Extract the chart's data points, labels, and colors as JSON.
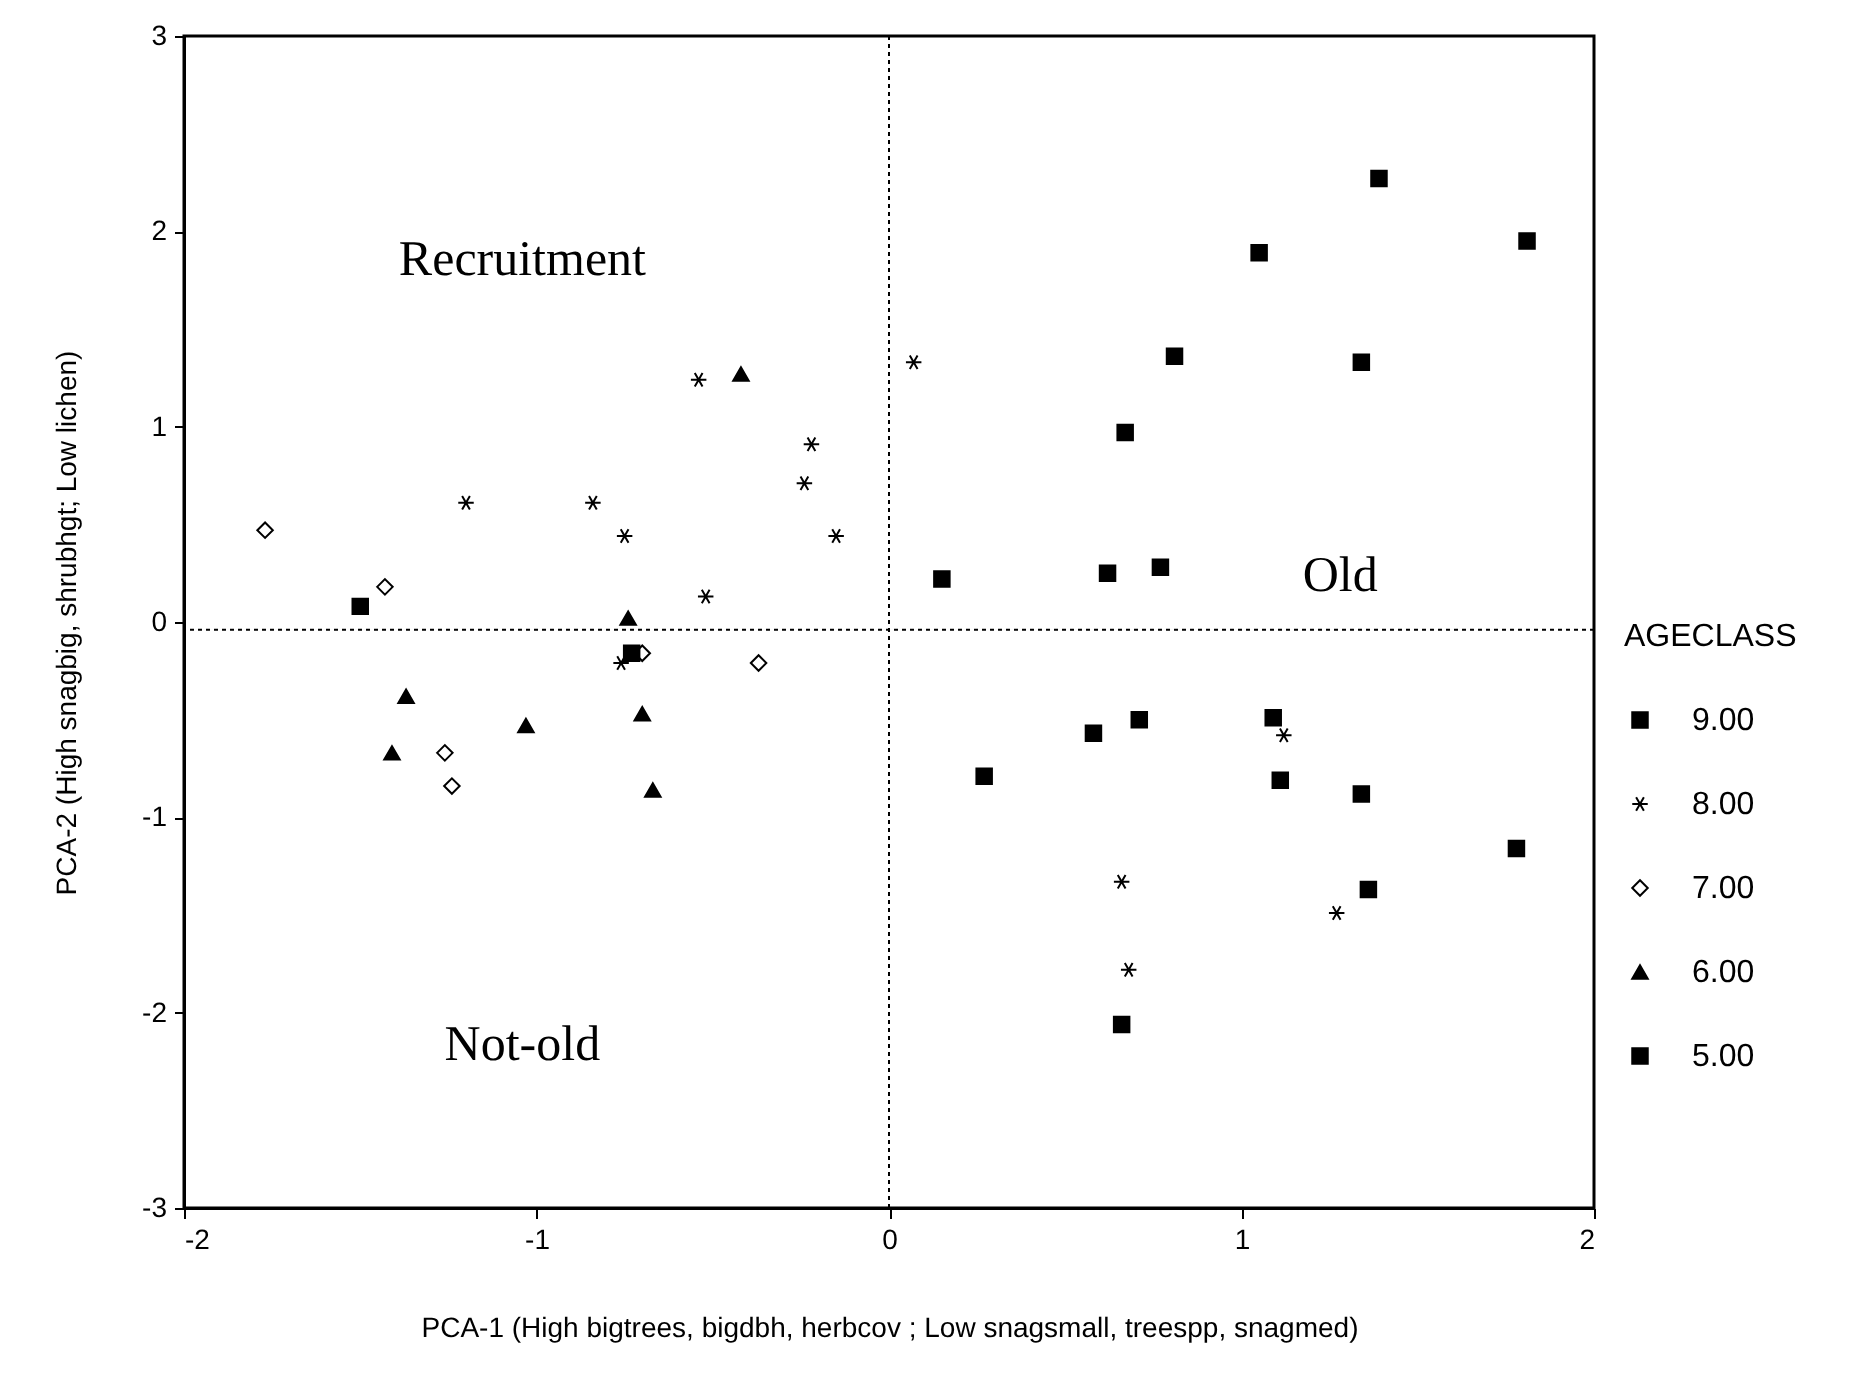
{
  "chart_data": {
    "type": "scatter",
    "xlabel": "PCA-1 (High bigtrees, bigdbh, herbcov ; Low snagsmall, treespp, snagmed)",
    "ylabel": "PCA-2 (High snagbig, shrubhgt; Low lichen)",
    "legend_title": "AGECLASS",
    "xlim": [
      -2,
      2
    ],
    "xticks": [
      -2,
      -1,
      0,
      1,
      2
    ],
    "ylim": [
      -3,
      3
    ],
    "yticks": [
      -3,
      -2,
      -1,
      0,
      1,
      2,
      3
    ],
    "grid": false,
    "legend": "right",
    "annotations": [
      "Recruitment",
      "Not-old",
      "Old"
    ],
    "ref_lines": [
      {
        "axis": "x",
        "value": 0,
        "line_style": "dotted"
      },
      {
        "axis": "y",
        "value": -0.04,
        "line_style": "dotted"
      }
    ],
    "series": [
      {
        "name": "9.00",
        "color": "#000000",
        "marker": "square",
        "x": [
          -1.5,
          1.39,
          1.05,
          1.81,
          0.81,
          1.34,
          0.67,
          0.15,
          0.62,
          0.77,
          0.71,
          0.58,
          0.27,
          1.09,
          1.11,
          1.34,
          1.78,
          1.36,
          0.66
        ],
        "values": [
          0.08,
          2.27,
          1.89,
          1.95,
          1.36,
          1.33,
          0.97,
          0.22,
          0.25,
          0.28,
          -0.5,
          -0.57,
          -0.79,
          -0.49,
          -0.81,
          -0.88,
          -1.16,
          -1.37,
          -2.06
        ]
      },
      {
        "name": "8.00",
        "color": "#000000",
        "marker": "cross",
        "x": [
          0.07,
          1.12,
          1.27,
          0.66,
          0.68,
          -1.2,
          -0.84,
          -0.75,
          -0.54,
          -0.22,
          -0.24,
          -0.15,
          -0.52,
          -0.76
        ],
        "values": [
          1.33,
          -0.58,
          -1.49,
          -1.33,
          -1.78,
          0.61,
          0.61,
          0.44,
          1.24,
          0.91,
          0.71,
          0.44,
          0.13,
          -0.21
        ]
      },
      {
        "name": "7.00",
        "color": "#000000",
        "marker": "diamond",
        "x": [
          -1.77,
          -1.43,
          -0.7,
          -0.37,
          -1.26,
          -1.24
        ],
        "values": [
          0.47,
          0.18,
          -0.16,
          -0.21,
          -0.67,
          -0.84
        ]
      },
      {
        "name": "6.00",
        "color": "#000000",
        "marker": "triangle",
        "x": [
          -0.42,
          -0.74,
          -1.37,
          -1.03,
          -0.7,
          -1.41,
          -0.67
        ],
        "values": [
          1.27,
          0.02,
          -0.38,
          -0.53,
          -0.47,
          -0.67,
          -0.86
        ]
      },
      {
        "name": "5.00",
        "color": "#000000",
        "marker": "square",
        "x": [
          -0.73
        ],
        "values": [
          -0.16
        ]
      }
    ]
  }
}
